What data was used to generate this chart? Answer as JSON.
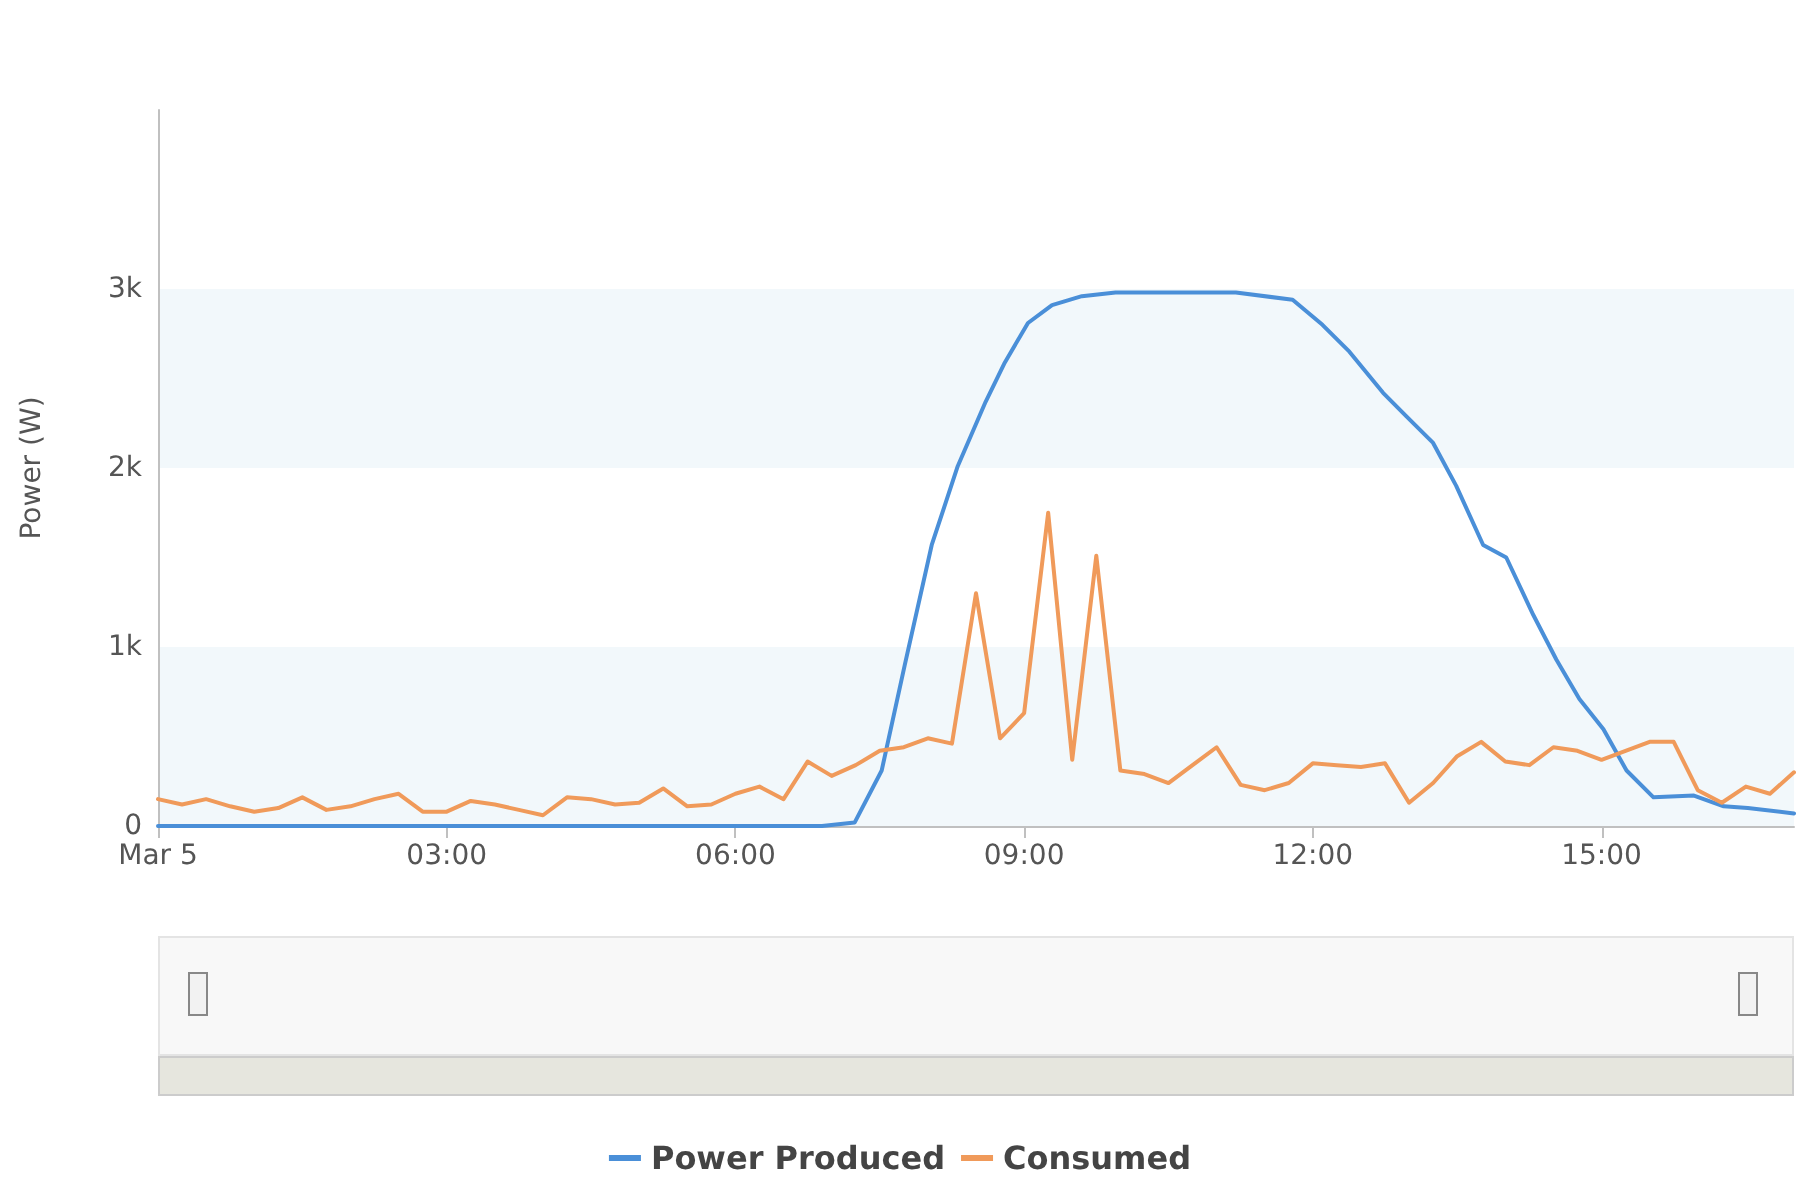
{
  "chart_data": {
    "type": "line",
    "ylabel": "Power (W)",
    "xlim": [
      0,
      17
    ],
    "xticks": [
      {
        "value": 0,
        "label": "Mar 5"
      },
      {
        "value": 3,
        "label": "03:00"
      },
      {
        "value": 6,
        "label": "06:00"
      },
      {
        "value": 9,
        "label": "09:00"
      },
      {
        "value": 12,
        "label": "12:00"
      },
      {
        "value": 15,
        "label": "15:00"
      }
    ],
    "ylim": [
      0,
      4000
    ],
    "yticks": [
      0,
      {
        "value": 1000,
        "label": "1k"
      },
      {
        "value": 2000,
        "label": "2k"
      },
      {
        "value": 3000,
        "label": "3k"
      }
    ],
    "grid": false,
    "legend": "bottom",
    "marker": "none",
    "line_style": "solid",
    "bands": [
      {
        "axis": "y",
        "from": 0,
        "to": 1000,
        "color": "#f2f8fb"
      },
      {
        "axis": "y",
        "from": 2000,
        "to": 3000,
        "color": "#f2f8fb"
      }
    ],
    "series": [
      {
        "name": "Power Produced",
        "color": "#4a8fd8",
        "x": [
          0,
          6.5,
          6.9,
          7.24,
          7.52,
          7.76,
          8.04,
          8.31,
          8.6,
          8.8,
          9.04,
          9.29,
          9.6,
          9.95,
          11.2,
          11.79,
          12.1,
          12.38,
          12.73,
          12.97,
          13.25,
          13.49,
          13.77,
          14.01,
          14.29,
          14.53,
          14.77,
          15.02,
          15.26,
          15.54,
          15.96,
          16.27,
          16.52,
          17
        ],
        "values": [
          0,
          0,
          0,
          20,
          310,
          900,
          1570,
          2010,
          2370,
          2590,
          2810,
          2910,
          2960,
          2980,
          2980,
          2940,
          2800,
          2650,
          2420,
          2290,
          2140,
          1900,
          1570,
          1500,
          1180,
          930,
          710,
          540,
          310,
          160,
          170,
          110,
          100,
          70
        ]
      },
      {
        "name": "Consumed",
        "color": "#f09a5a",
        "x": [
          0,
          0.25,
          0.5,
          0.75,
          1,
          1.25,
          1.5,
          1.75,
          2,
          2.25,
          2.5,
          2.75,
          3,
          3.25,
          3.5,
          3.75,
          4,
          4.25,
          4.5,
          4.75,
          5,
          5.25,
          5.5,
          5.75,
          6,
          6.25,
          6.5,
          6.75,
          7,
          7.25,
          7.5,
          7.75,
          8,
          8.25,
          8.5,
          8.75,
          9,
          9.25,
          9.5,
          9.75,
          10,
          10.25,
          10.5,
          10.75,
          11,
          11.25,
          11.5,
          11.75,
          12,
          12.25,
          12.5,
          12.75,
          13,
          13.25,
          13.5,
          13.75,
          14,
          14.25,
          14.5,
          14.75,
          15,
          15.25,
          15.5,
          15.75,
          16,
          16.25,
          16.5,
          16.75,
          17
        ],
        "values": [
          150,
          120,
          150,
          110,
          80,
          100,
          160,
          90,
          110,
          150,
          180,
          80,
          80,
          140,
          120,
          90,
          60,
          160,
          150,
          120,
          130,
          210,
          110,
          120,
          180,
          220,
          150,
          360,
          280,
          340,
          420,
          440,
          490,
          460,
          1300,
          490,
          630,
          1750,
          370,
          1510,
          310,
          290,
          240,
          340,
          440,
          230,
          200,
          240,
          350,
          340,
          330,
          350,
          130,
          240,
          390,
          470,
          360,
          340,
          440,
          420,
          370,
          420,
          470,
          470,
          200,
          130,
          220,
          180,
          300
        ]
      }
    ]
  }
}
